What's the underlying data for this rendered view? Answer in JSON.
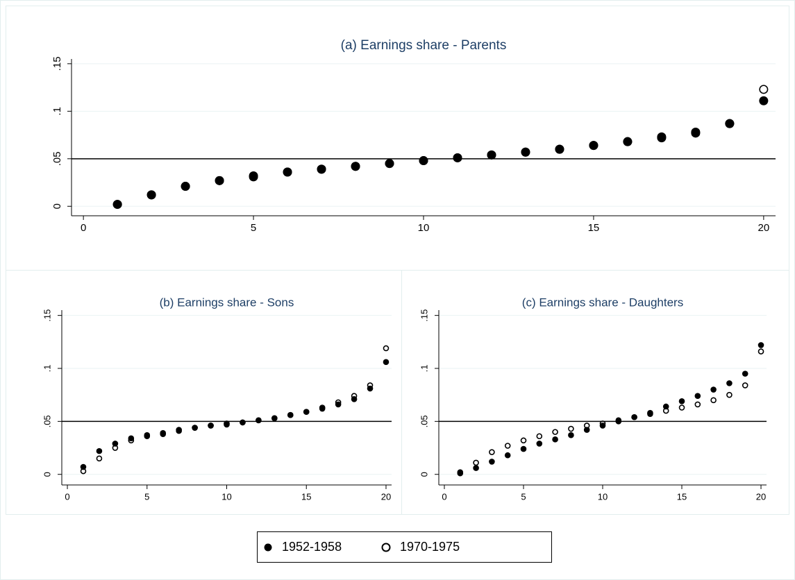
{
  "chart_data": [
    {
      "type": "scatter",
      "title": "(a) Earnings share - Parents",
      "x": [
        1,
        2,
        3,
        4,
        5,
        6,
        7,
        8,
        9,
        10,
        11,
        12,
        13,
        14,
        15,
        16,
        17,
        18,
        19,
        20
      ],
      "series": [
        {
          "name": "1952-1958",
          "color": "#000000",
          "filled": true,
          "values": [
            0.002,
            0.012,
            0.021,
            0.027,
            0.032,
            0.036,
            0.039,
            0.042,
            0.045,
            0.048,
            0.051,
            0.054,
            0.057,
            0.06,
            0.064,
            0.068,
            0.073,
            0.078,
            0.087,
            0.111
          ]
        },
        {
          "name": "1970-1975",
          "color": "#000000",
          "filled": false,
          "values": [
            0.002,
            0.012,
            0.021,
            0.027,
            0.031,
            0.036,
            0.039,
            0.042,
            0.045,
            0.048,
            0.051,
            0.054,
            0.057,
            0.06,
            0.064,
            0.068,
            0.072,
            0.077,
            0.087,
            0.123
          ]
        }
      ],
      "xlim": [
        -0.35,
        20.35
      ],
      "ylim": [
        -0.01,
        0.155
      ],
      "xticks": [
        0,
        5,
        10,
        15,
        20
      ],
      "yticks": [
        0,
        {
          "value": 0.05,
          "label": ".05"
        },
        {
          "value": 0.1,
          "label": ".1"
        },
        {
          "value": 0.15,
          "label": ".15"
        }
      ],
      "hline": 0.05,
      "grid": true
    },
    {
      "type": "scatter",
      "title": "(b) Earnings share - Sons",
      "x": [
        1,
        2,
        3,
        4,
        5,
        6,
        7,
        8,
        9,
        10,
        11,
        12,
        13,
        14,
        15,
        16,
        17,
        18,
        19,
        20
      ],
      "series": [
        {
          "name": "1952-1958",
          "color": "#000000",
          "filled": true,
          "values": [
            0.007,
            0.022,
            0.029,
            0.034,
            0.037,
            0.039,
            0.042,
            0.044,
            0.046,
            0.047,
            0.049,
            0.051,
            0.053,
            0.056,
            0.059,
            0.062,
            0.066,
            0.071,
            0.081,
            0.106
          ]
        },
        {
          "name": "1970-1975",
          "color": "#000000",
          "filled": false,
          "values": [
            0.003,
            0.015,
            0.025,
            0.032,
            0.036,
            0.038,
            0.041,
            0.044,
            0.046,
            0.048,
            0.049,
            0.051,
            0.053,
            0.056,
            0.059,
            0.063,
            0.068,
            0.074,
            0.084,
            0.119
          ]
        }
      ],
      "xlim": [
        -0.35,
        20.35
      ],
      "ylim": [
        -0.01,
        0.155
      ],
      "xticks": [
        0,
        5,
        10,
        15,
        20
      ],
      "yticks": [
        0,
        {
          "value": 0.05,
          "label": ".05"
        },
        {
          "value": 0.1,
          "label": ".1"
        },
        {
          "value": 0.15,
          "label": ".15"
        }
      ],
      "hline": 0.05,
      "grid": true
    },
    {
      "type": "scatter",
      "title": "(c) Earnings share - Daughters",
      "x": [
        1,
        2,
        3,
        4,
        5,
        6,
        7,
        8,
        9,
        10,
        11,
        12,
        13,
        14,
        15,
        16,
        17,
        18,
        19,
        20
      ],
      "series": [
        {
          "name": "1952-1958",
          "color": "#000000",
          "filled": true,
          "values": [
            0.001,
            0.006,
            0.012,
            0.018,
            0.024,
            0.029,
            0.033,
            0.037,
            0.042,
            0.046,
            0.05,
            0.054,
            0.058,
            0.064,
            0.069,
            0.074,
            0.08,
            0.086,
            0.095,
            0.122
          ]
        },
        {
          "name": "1970-1975",
          "color": "#000000",
          "filled": false,
          "values": [
            0.002,
            0.011,
            0.021,
            0.027,
            0.032,
            0.036,
            0.04,
            0.043,
            0.046,
            0.048,
            0.051,
            0.054,
            0.057,
            0.06,
            0.063,
            0.066,
            0.07,
            0.075,
            0.084,
            0.116
          ]
        }
      ],
      "xlim": [
        -0.35,
        20.35
      ],
      "ylim": [
        -0.01,
        0.155
      ],
      "xticks": [
        0,
        5,
        10,
        15,
        20
      ],
      "yticks": [
        0,
        {
          "value": 0.05,
          "label": ".05"
        },
        {
          "value": 0.1,
          "label": ".1"
        },
        {
          "value": 0.15,
          "label": ".15"
        }
      ],
      "hline": 0.05,
      "grid": true
    }
  ]
}
